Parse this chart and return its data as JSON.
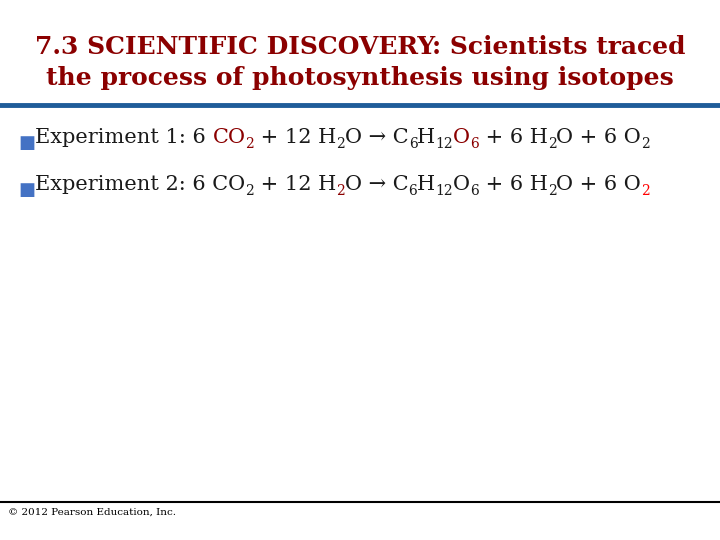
{
  "title_line1": "7.3 SCIENTIFIC DISCOVERY: Scientists traced",
  "title_line2": "the process of photosynthesis using isotopes",
  "title_color": "#8B0000",
  "title_fontsize": 18,
  "separator_color": "#1F5C99",
  "separator_linewidth": 3.5,
  "bullet_color": "#4472C4",
  "dark_red": "#8B0000",
  "black": "#1a1a1a",
  "red": "#FF0000",
  "footer_text": "© 2012 Pearson Education, Inc.",
  "footer_color": "#000000",
  "footer_fontsize": 7.5,
  "background_color": "#FFFFFF",
  "bottom_line_color": "#000000",
  "main_fontsize": 15,
  "sub_fontsize": 10
}
